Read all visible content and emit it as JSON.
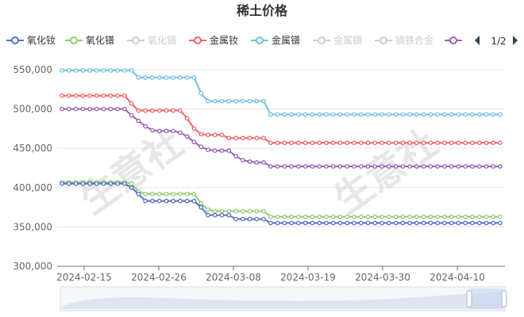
{
  "chart_data": {
    "type": "line",
    "title": "稀土价格",
    "watermark": "生意社",
    "y_range": [
      300000,
      560000
    ],
    "y_ticks": [
      "300,000",
      "350,000",
      "400,000",
      "450,000",
      "500,000",
      "550,000"
    ],
    "x_ticks": [
      "2024-02-15",
      "2024-02-26",
      "2024-03-08",
      "2024-03-19",
      "2024-03-30",
      "2024-04-10"
    ],
    "x_range_days": [
      "2024-02-13",
      "2024-04-17"
    ],
    "legend_page": "1/2",
    "series": [
      {
        "name": "氧化钕",
        "color": "#5470c6",
        "active": true,
        "values": [
          405000,
          405000,
          405000,
          405000,
          405000,
          405000,
          405000,
          405000,
          405000,
          405000,
          400000,
          392000,
          383000,
          383000,
          383000,
          383000,
          383000,
          383000,
          383000,
          383000,
          375000,
          365000,
          365000,
          365000,
          365000,
          360000,
          360000,
          360000,
          360000,
          360000,
          355000,
          355000,
          355000,
          355000,
          355000,
          355000,
          355000,
          355000,
          355000,
          355000,
          355000,
          355000,
          355000,
          355000,
          355000,
          355000,
          355000,
          355000,
          355000,
          355000,
          355000,
          355000,
          355000,
          355000,
          355000,
          355000,
          355000,
          355000,
          355000,
          355000,
          355000,
          355000,
          355000,
          355000
        ]
      },
      {
        "name": "氧化镨",
        "color": "#91cc75",
        "active": true,
        "values": [
          407000,
          407000,
          407000,
          407000,
          407000,
          407000,
          407000,
          407000,
          407000,
          407000,
          405000,
          395000,
          392000,
          392000,
          392000,
          392000,
          392000,
          392000,
          392000,
          392000,
          380000,
          372000,
          370000,
          370000,
          370000,
          370000,
          370000,
          370000,
          370000,
          370000,
          363000,
          363000,
          363000,
          363000,
          363000,
          363000,
          363000,
          363000,
          363000,
          363000,
          363000,
          363000,
          363000,
          363000,
          363000,
          363000,
          363000,
          363000,
          363000,
          363000,
          363000,
          363000,
          363000,
          363000,
          363000,
          363000,
          363000,
          363000,
          363000,
          363000,
          363000,
          363000,
          363000,
          363000
        ]
      },
      {
        "name": "氧化镝",
        "color": "#cccccc",
        "active": false,
        "values": []
      },
      {
        "name": "金属钕",
        "color": "#ee6666",
        "active": true,
        "values": [
          517000,
          517000,
          517000,
          517000,
          517000,
          517000,
          517000,
          517000,
          517000,
          517000,
          507000,
          498000,
          498000,
          498000,
          498000,
          498000,
          498000,
          498000,
          488000,
          475000,
          468000,
          467000,
          467000,
          467000,
          463000,
          463000,
          463000,
          463000,
          463000,
          463000,
          457000,
          457000,
          457000,
          457000,
          457000,
          457000,
          457000,
          457000,
          457000,
          457000,
          457000,
          457000,
          457000,
          457000,
          457000,
          457000,
          457000,
          457000,
          457000,
          457000,
          457000,
          457000,
          457000,
          457000,
          457000,
          457000,
          457000,
          457000,
          457000,
          457000,
          457000,
          457000,
          457000,
          457000
        ]
      },
      {
        "name": "金属镨",
        "color": "#73c0de",
        "active": true,
        "values": [
          549000,
          549000,
          549000,
          549000,
          549000,
          549000,
          549000,
          549000,
          549000,
          549000,
          549000,
          540000,
          540000,
          540000,
          540000,
          540000,
          540000,
          540000,
          540000,
          540000,
          520000,
          510000,
          510000,
          510000,
          510000,
          510000,
          510000,
          510000,
          510000,
          510000,
          493000,
          493000,
          493000,
          493000,
          493000,
          493000,
          493000,
          493000,
          493000,
          493000,
          493000,
          493000,
          493000,
          493000,
          493000,
          493000,
          493000,
          493000,
          493000,
          493000,
          493000,
          493000,
          493000,
          493000,
          493000,
          493000,
          493000,
          493000,
          493000,
          493000,
          493000,
          493000,
          493000,
          493000
        ]
      },
      {
        "name": "金属镝",
        "color": "#cccccc",
        "active": false,
        "values": []
      },
      {
        "name": "镝铁合金",
        "color": "#cccccc",
        "active": false,
        "values": []
      },
      {
        "name": "",
        "color": "#9a60b4",
        "active": true,
        "values": [
          500000,
          500000,
          500000,
          500000,
          500000,
          500000,
          500000,
          500000,
          500000,
          500000,
          492000,
          485000,
          478000,
          473000,
          472000,
          472000,
          472000,
          470000,
          465000,
          458000,
          452000,
          448000,
          447000,
          447000,
          447000,
          440000,
          435000,
          433000,
          432000,
          432000,
          427000,
          427000,
          427000,
          427000,
          427000,
          427000,
          427000,
          427000,
          427000,
          427000,
          427000,
          427000,
          427000,
          427000,
          427000,
          427000,
          427000,
          427000,
          427000,
          427000,
          427000,
          427000,
          427000,
          427000,
          427000,
          427000,
          427000,
          427000,
          427000,
          427000,
          427000,
          427000,
          427000,
          427000
        ]
      },
      {
        "name": "",
        "color": "#ea7ccc",
        "active": true,
        "values": []
      }
    ]
  }
}
